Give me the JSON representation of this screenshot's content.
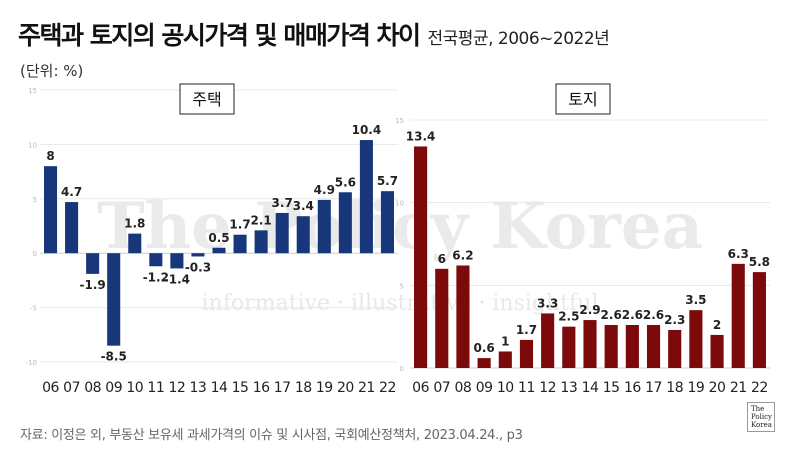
{
  "title": {
    "main": "주택과 토지의 공시가격 및 매매가격 차이",
    "sub": "전국평균, 2006~2022년"
  },
  "unit_label": "(단위: %)",
  "source": "자료: 이정은 외, 부동산 보유세 과세가격의 이슈 및 시사점, 국회예산정책처, 2023.04.24., p3",
  "logo_lines": [
    "The",
    "Policy",
    "Korea"
  ],
  "watermark": {
    "main": "The Policy Korea",
    "sub": "informative · illustrative · insightful"
  },
  "chart_data": [
    {
      "type": "bar",
      "title": "주택",
      "color": "#17377a",
      "categories": [
        "06",
        "07",
        "08",
        "09",
        "10",
        "11",
        "12",
        "13",
        "14",
        "15",
        "16",
        "17",
        "18",
        "19",
        "20",
        "21",
        "22"
      ],
      "values": [
        8,
        4.7,
        -1.9,
        -8.5,
        1.8,
        -1.2,
        -1.4,
        -0.3,
        0.5,
        1.7,
        2.1,
        3.7,
        3.4,
        4.9,
        5.6,
        10.4,
        5.7
      ],
      "ylim": [
        -10,
        15
      ],
      "yticks": [
        -10,
        -5,
        0,
        5,
        10,
        15
      ],
      "show_labels": [
        true,
        true,
        true,
        true,
        true,
        true,
        true,
        true,
        true,
        true,
        true,
        true,
        true,
        true,
        true,
        true,
        true
      ]
    },
    {
      "type": "bar",
      "title": "토지",
      "color": "#7d0a0a",
      "categories": [
        "06",
        "07",
        "08",
        "09",
        "10",
        "11",
        "12",
        "13",
        "14",
        "15",
        "16",
        "17",
        "18",
        "19",
        "20",
        "21",
        "22"
      ],
      "values": [
        13.4,
        6,
        6.2,
        0.6,
        1,
        1.7,
        3.3,
        2.5,
        2.9,
        2.6,
        2.6,
        2.6,
        2.3,
        3.5,
        2,
        6.3,
        5.8
      ],
      "ylim": [
        0,
        15
      ],
      "yticks": [
        0,
        5,
        10,
        15
      ],
      "show_labels": [
        true,
        true,
        true,
        true,
        true,
        true,
        true,
        true,
        true,
        true,
        true,
        true,
        true,
        true,
        true,
        true,
        true
      ]
    }
  ]
}
